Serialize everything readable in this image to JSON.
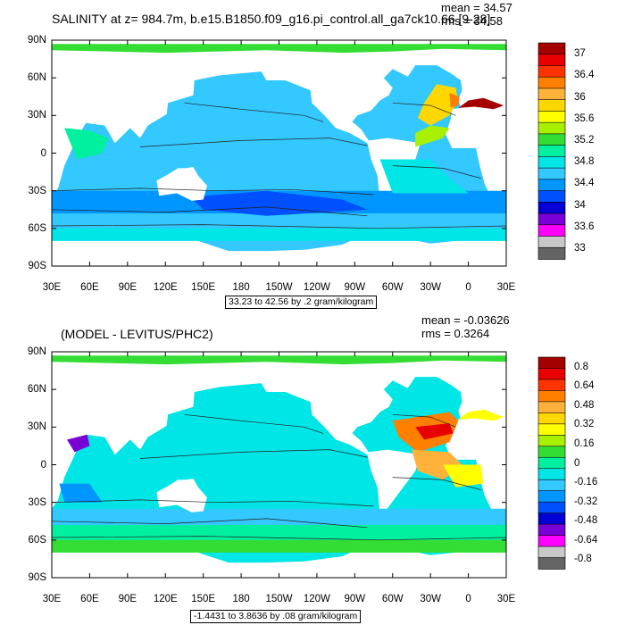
{
  "chart_data": [
    {
      "type": "heatmap",
      "title": "SALINITY at z= 984.7m, b.e15.B1850.f09_g16.pi_control.all_ga7ck10.66 [9-28]",
      "stats": {
        "mean": "mean = 34.57",
        "rms": "rms = 34.58"
      },
      "y_ticks": [
        "90N",
        "60N",
        "30N",
        "0",
        "30S",
        "60S",
        "90S"
      ],
      "x_ticks": [
        "30E",
        "60E",
        "90E",
        "120E",
        "150E",
        "180",
        "150W",
        "120W",
        "90W",
        "60W",
        "30W",
        "0",
        "30E"
      ],
      "contour_info": "33.23 to 42.56 by .2 gram/kilogram",
      "colorbar": {
        "labels": [
          "37",
          "36.4",
          "36",
          "35.6",
          "35.2",
          "34.8",
          "34.4",
          "34",
          "33.6",
          "33"
        ],
        "colors": [
          "#a50000",
          "#e80000",
          "#ff3300",
          "#ff7f00",
          "#ffb23a",
          "#ffd700",
          "#ffff00",
          "#a8f000",
          "#33dd33",
          "#00f0a0",
          "#00e5e5",
          "#33c8ff",
          "#0096ff",
          "#0050ff",
          "#0000d7",
          "#7a00d8",
          "#ff00ff",
          "#c8c8c8",
          "#646464"
        ]
      }
    },
    {
      "type": "heatmap",
      "title": "(MODEL - LEVITUS/PHC2)",
      "stats": {
        "mean": "mean = -0.03626",
        "rms": "rms = 0.3264"
      },
      "y_ticks": [
        "90N",
        "60N",
        "30N",
        "0",
        "30S",
        "60S",
        "90S"
      ],
      "x_ticks": [
        "30E",
        "60E",
        "90E",
        "120E",
        "150E",
        "180",
        "150W",
        "120W",
        "90W",
        "60W",
        "30W",
        "0",
        "30E"
      ],
      "contour_info": "-1.4431 to 3.8636 by .08 gram/kilogram",
      "colorbar": {
        "labels": [
          "0.8",
          "0.64",
          "0.48",
          "0.32",
          "0.16",
          "0",
          "-0.16",
          "-0.32",
          "-0.48",
          "-0.64",
          "-0.8"
        ],
        "colors": [
          "#a50000",
          "#e80000",
          "#ff3300",
          "#ff7f00",
          "#ffb23a",
          "#ffd700",
          "#ffff00",
          "#a8f000",
          "#33dd33",
          "#00f0a0",
          "#00e5e5",
          "#33c8ff",
          "#0096ff",
          "#0050ff",
          "#0000d7",
          "#7a00d8",
          "#ff00ff",
          "#c8c8c8",
          "#646464"
        ]
      }
    }
  ]
}
